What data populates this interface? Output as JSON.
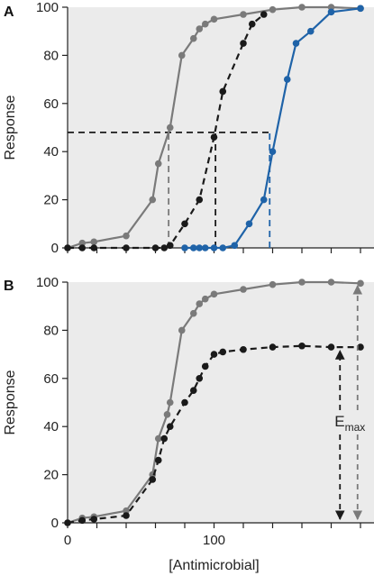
{
  "colors": {
    "gray": "#7a7a7a",
    "black": "#1a1a1a",
    "blue": "#1f63a8",
    "background": "#ffffff"
  },
  "chart_data": [
    {
      "type": "line",
      "panel_label": "A",
      "ylabel": "Response",
      "xlabel": "",
      "xlim": [
        0,
        205
      ],
      "ylim": [
        0,
        100
      ],
      "yticks": [
        0,
        20,
        40,
        60,
        80,
        100
      ],
      "xticks_minor": [
        0,
        20,
        40,
        60,
        80,
        100,
        120,
        140,
        160,
        180,
        200
      ],
      "xtick_labels": [],
      "grid": false,
      "series": [
        {
          "color": "gray",
          "dashed": false,
          "x": [
            0,
            10,
            18,
            40,
            58,
            62,
            70,
            78,
            86,
            90,
            94,
            100,
            120,
            140,
            160,
            180,
            200
          ],
          "y": [
            0,
            2,
            2.5,
            5,
            20,
            35,
            50,
            80,
            87,
            91,
            93,
            95,
            97,
            99,
            100,
            100,
            99.5
          ]
        },
        {
          "color": "black",
          "dashed": true,
          "x": [
            0,
            10,
            18,
            40,
            60,
            66,
            70,
            80,
            90,
            100,
            106,
            120,
            126,
            134
          ],
          "y": [
            0,
            0,
            0,
            0,
            0,
            0,
            1,
            10,
            20,
            46,
            65,
            85,
            93,
            97
          ]
        },
        {
          "color": "blue",
          "dashed": false,
          "x": [
            80,
            86,
            90,
            94,
            100,
            106,
            114,
            124,
            134,
            140,
            150,
            156,
            166,
            180,
            200
          ],
          "y": [
            0,
            0,
            0,
            0,
            0,
            0,
            1,
            10,
            20,
            40,
            70,
            85,
            90,
            98,
            99.5
          ]
        }
      ],
      "reference_lines": [
        {
          "kind": "horizontal",
          "y": 48,
          "x_from": 0,
          "x_to": 138,
          "color": "black"
        },
        {
          "kind": "vertical",
          "x": 69,
          "y_from": 0,
          "y_to": 48,
          "color": "gray"
        },
        {
          "kind": "vertical",
          "x": 101,
          "y_from": 0,
          "y_to": 48,
          "color": "black"
        },
        {
          "kind": "vertical",
          "x": 138,
          "y_from": 0,
          "y_to": 48,
          "color": "blue"
        }
      ]
    },
    {
      "type": "line",
      "panel_label": "B",
      "ylabel": "Response",
      "xlabel": "[Antimicrobial]",
      "xlim": [
        0,
        205
      ],
      "ylim": [
        0,
        100
      ],
      "yticks": [
        0,
        20,
        40,
        60,
        80,
        100
      ],
      "xticks_minor": [
        0,
        20,
        40,
        60,
        80,
        100,
        120,
        140,
        160,
        180,
        200
      ],
      "xtick_labels": [
        0,
        100
      ],
      "grid": false,
      "series": [
        {
          "color": "gray",
          "dashed": false,
          "x": [
            0,
            10,
            18,
            40,
            58,
            62,
            68,
            70,
            78,
            86,
            90,
            94,
            100,
            120,
            140,
            160,
            180,
            200
          ],
          "y": [
            0,
            2,
            2.5,
            5,
            20,
            35,
            45,
            50,
            80,
            87,
            91,
            93,
            95,
            97,
            99,
            100,
            100,
            99.5
          ]
        },
        {
          "color": "black",
          "dashed": true,
          "x": [
            0,
            10,
            18,
            40,
            58,
            62,
            66,
            70,
            80,
            86,
            90,
            94,
            100,
            106,
            120,
            140,
            160,
            180,
            200
          ],
          "y": [
            0,
            1,
            1.5,
            3,
            18,
            26,
            35,
            40,
            50,
            55,
            60,
            65,
            70,
            71,
            72,
            73,
            73.5,
            73,
            73
          ]
        }
      ],
      "emax": {
        "label": "E",
        "subscript": "max",
        "arrows": [
          {
            "x": 186,
            "y_from": 0,
            "y_to": 73,
            "color": "black"
          },
          {
            "x": 198,
            "y_from": 0,
            "y_to": 100,
            "color": "gray"
          }
        ]
      }
    }
  ]
}
